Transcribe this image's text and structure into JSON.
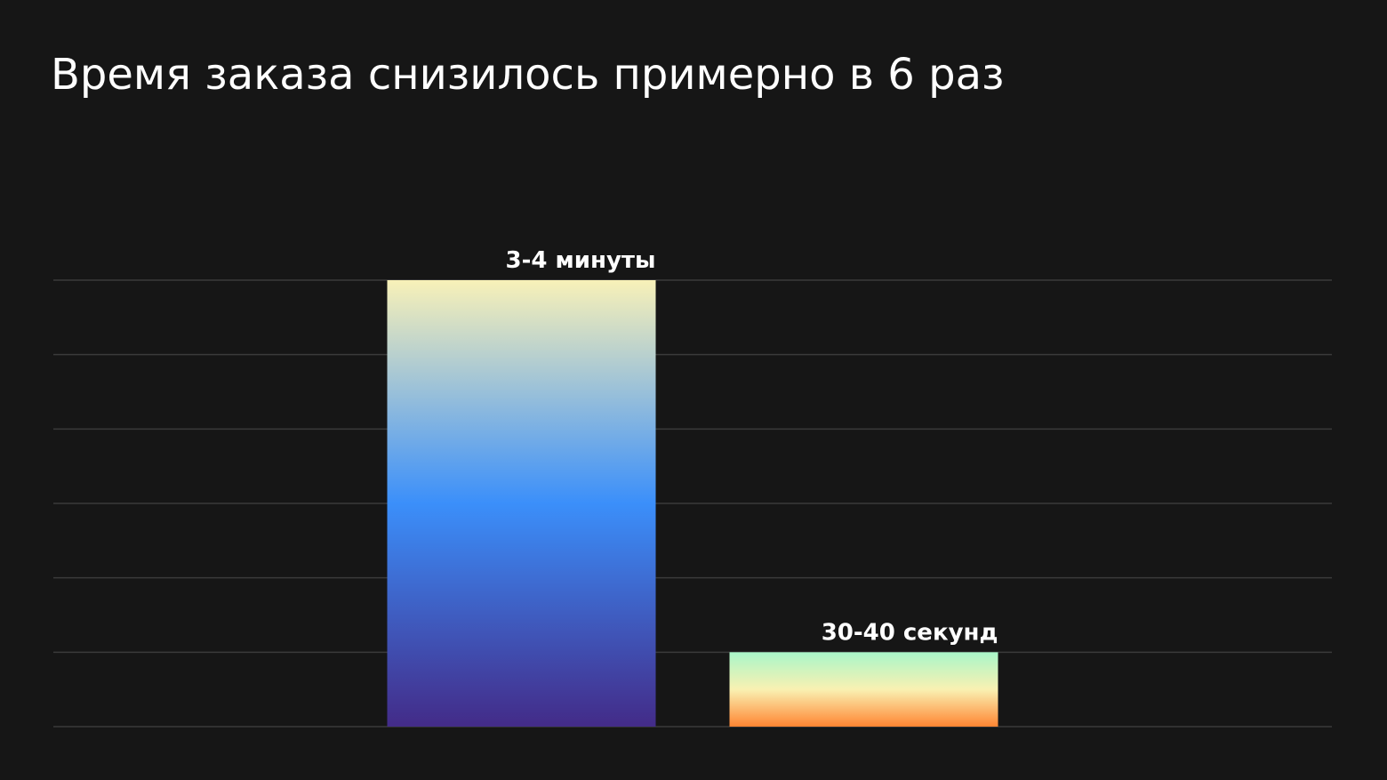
{
  "chart_data": {
    "type": "bar",
    "title": "Время заказа снизилось примерно в 6 раз",
    "values": [
      210,
      35
    ],
    "value_labels": [
      "3-4 минуты",
      "30-40 секунд"
    ],
    "gradients": [
      [
        "#f8f1b8",
        "#3b8ffa",
        "#432b88"
      ],
      [
        "#a9f6c9",
        "#f9f1b2",
        "#ff8532"
      ]
    ],
    "ylim": [
      0,
      210
    ],
    "yticks": [
      0,
      35,
      70,
      105,
      140,
      175,
      210
    ],
    "grid": true,
    "grid_color": "#3a3a3a"
  }
}
